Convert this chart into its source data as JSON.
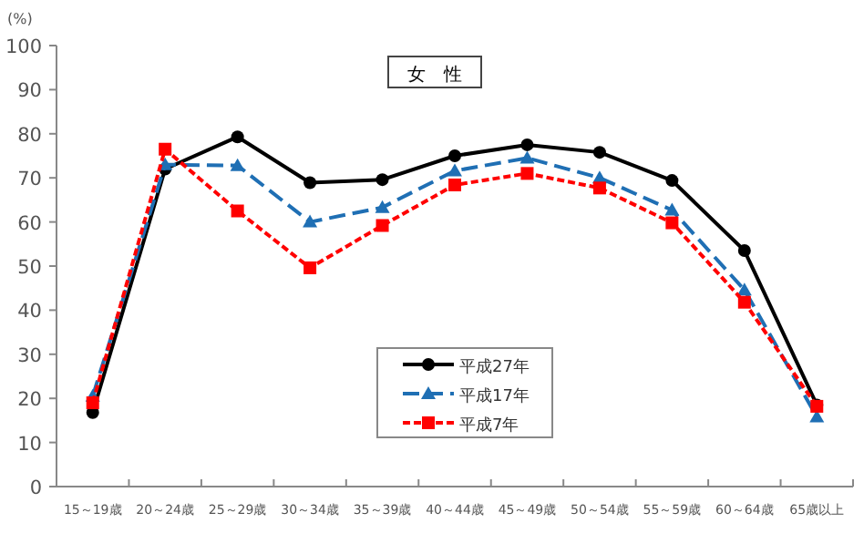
{
  "chart_data": {
    "type": "line",
    "title": "女　性",
    "ylabel": "(%)",
    "categories": [
      "15～19歳",
      "20～24歳",
      "25～29歳",
      "30～34歳",
      "35～39歳",
      "40～44歳",
      "45～49歳",
      "50～54歳",
      "55～59歳",
      "60～64歳",
      "65歳以上"
    ],
    "series": [
      {
        "name": "平成27年",
        "color": "#000000",
        "marker": "circle",
        "line_style": "solid",
        "values": [
          16.8,
          72,
          79.3,
          68.9,
          69.6,
          75.0,
          77.5,
          75.8,
          69.4,
          53.5,
          18.5
        ]
      },
      {
        "name": "平成17年",
        "color": "#1f6fb4",
        "marker": "triangle",
        "line_style": "dashed",
        "values": [
          20.5,
          73,
          72.8,
          60.0,
          63.3,
          71.6,
          74.5,
          70.0,
          62.7,
          44.6,
          15.8
        ]
      },
      {
        "name": "平成7年",
        "color": "#ff0000",
        "marker": "square",
        "line_style": "dotted",
        "values": [
          19.0,
          76.5,
          62.5,
          49.6,
          59.2,
          68.4,
          71.0,
          67.7,
          59.8,
          41.8,
          18.2
        ]
      }
    ],
    "ylim": [
      0,
      100
    ],
    "yticks": [
      0,
      10,
      20,
      30,
      40,
      50,
      60,
      70,
      80,
      90,
      100
    ],
    "grid": false,
    "legend": "bottom"
  }
}
